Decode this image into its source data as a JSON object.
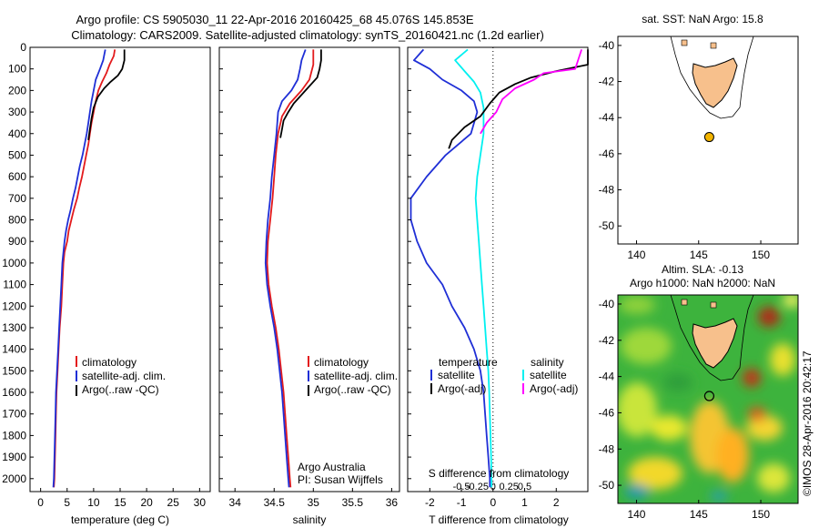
{
  "header": {
    "line1": "Argo profile: CS 5905030_11 22-Apr-2016 20160425_68 45.076S 145.853E",
    "line2": "Climatology: CARS2009. Satellite-adjusted climatology: synTS_20160421.nc (1.2d earlier)"
  },
  "colors": {
    "climatology": "#e31a1c",
    "satellite": "#1f2fd6",
    "argo": "#000000",
    "sal_satellite": "#00f0f0",
    "sal_argo": "#ff00ff",
    "land": "#f7c08c"
  },
  "depth_axis": {
    "ticks": [
      0,
      100,
      200,
      300,
      400,
      500,
      600,
      700,
      800,
      900,
      1000,
      1100,
      1200,
      1300,
      1400,
      1500,
      1600,
      1700,
      1800,
      1900,
      2000
    ],
    "ylim": [
      0,
      2060
    ]
  },
  "chart_data": [
    {
      "id": "temp",
      "type": "line",
      "xlabel": "temperature (deg C)",
      "xlim": [
        -2,
        32
      ],
      "xticks": [
        0,
        5,
        10,
        15,
        20,
        25,
        30
      ],
      "legend": [
        "climatology",
        "satellite-adj. clim.",
        "Argo(..raw -QC)"
      ],
      "series": [
        {
          "name": "climatology",
          "color": "#e31a1c",
          "points": [
            [
              14.0,
              10
            ],
            [
              13.8,
              40
            ],
            [
              13.0,
              80
            ],
            [
              12.4,
              120
            ],
            [
              11.6,
              160
            ],
            [
              10.9,
              200
            ],
            [
              10.4,
              250
            ],
            [
              10.0,
              300
            ],
            [
              9.6,
              350
            ],
            [
              9.3,
              400
            ],
            [
              9.0,
              450
            ],
            [
              8.6,
              500
            ],
            [
              8.2,
              550
            ],
            [
              7.8,
              600
            ],
            [
              7.3,
              650
            ],
            [
              6.9,
              700
            ],
            [
              6.3,
              750
            ],
            [
              5.8,
              800
            ],
            [
              5.3,
              850
            ],
            [
              5.0,
              900
            ],
            [
              4.5,
              950
            ],
            [
              4.3,
              1000
            ],
            [
              4.1,
              1100
            ],
            [
              3.9,
              1200
            ],
            [
              3.6,
              1300
            ],
            [
              3.4,
              1400
            ],
            [
              3.2,
              1500
            ],
            [
              3.0,
              1600
            ],
            [
              2.9,
              1700
            ],
            [
              2.8,
              1800
            ],
            [
              2.7,
              1900
            ],
            [
              2.6,
              2000
            ],
            [
              2.5,
              2040
            ]
          ]
        },
        {
          "name": "satellite-adj. clim.",
          "color": "#1f2fd6",
          "points": [
            [
              12.2,
              10
            ],
            [
              11.8,
              60
            ],
            [
              11.2,
              100
            ],
            [
              10.4,
              150
            ],
            [
              10.0,
              200
            ],
            [
              9.6,
              250
            ],
            [
              9.3,
              300
            ],
            [
              9.0,
              350
            ],
            [
              8.7,
              400
            ],
            [
              8.3,
              450
            ],
            [
              7.9,
              500
            ],
            [
              7.4,
              550
            ],
            [
              7.0,
              600
            ],
            [
              6.6,
              650
            ],
            [
              6.1,
              700
            ],
            [
              5.7,
              750
            ],
            [
              5.2,
              800
            ],
            [
              4.8,
              850
            ],
            [
              4.5,
              900
            ],
            [
              4.3,
              950
            ],
            [
              4.1,
              1000
            ],
            [
              3.9,
              1100
            ],
            [
              3.7,
              1200
            ],
            [
              3.5,
              1300
            ],
            [
              3.3,
              1400
            ],
            [
              3.1,
              1500
            ],
            [
              2.9,
              1600
            ],
            [
              2.8,
              1700
            ],
            [
              2.7,
              1800
            ],
            [
              2.6,
              1900
            ],
            [
              2.5,
              2000
            ],
            [
              2.4,
              2040
            ]
          ]
        },
        {
          "name": "Argo(..raw -QC)",
          "color": "#000000",
          "points": [
            [
              15.8,
              10
            ],
            [
              15.8,
              60
            ],
            [
              15.4,
              100
            ],
            [
              14.6,
              130
            ],
            [
              13.2,
              160
            ],
            [
              12.0,
              190
            ],
            [
              10.8,
              230
            ],
            [
              10.0,
              280
            ],
            [
              9.6,
              330
            ],
            [
              9.3,
              380
            ],
            [
              9.0,
              430
            ]
          ]
        }
      ]
    },
    {
      "id": "sal",
      "type": "line",
      "xlabel": "salinity",
      "xlim": [
        33.8,
        36.1
      ],
      "xticks": [
        34,
        34.5,
        35,
        35.5,
        36
      ],
      "legend": [
        "climatology",
        "satellite-adj. clim.",
        "Argo(..raw -QC)"
      ],
      "annotation": [
        "Argo Australia",
        "PI: Susan Wijffels"
      ],
      "series": [
        {
          "name": "climatology",
          "color": "#e31a1c",
          "points": [
            [
              35.0,
              10
            ],
            [
              35.0,
              80
            ],
            [
              34.95,
              150
            ],
            [
              34.85,
              200
            ],
            [
              34.7,
              260
            ],
            [
              34.6,
              320
            ],
            [
              34.55,
              400
            ],
            [
              34.52,
              500
            ],
            [
              34.5,
              600
            ],
            [
              34.48,
              700
            ],
            [
              34.45,
              800
            ],
            [
              34.42,
              900
            ],
            [
              34.41,
              1000
            ],
            [
              34.43,
              1100
            ],
            [
              34.47,
              1200
            ],
            [
              34.52,
              1300
            ],
            [
              34.56,
              1400
            ],
            [
              34.59,
              1500
            ],
            [
              34.62,
              1600
            ],
            [
              34.64,
              1700
            ],
            [
              34.66,
              1800
            ],
            [
              34.68,
              1900
            ],
            [
              34.7,
              2000
            ],
            [
              34.71,
              2040
            ]
          ]
        },
        {
          "name": "satellite-adj. clim.",
          "color": "#1f2fd6",
          "points": [
            [
              34.9,
              10
            ],
            [
              34.85,
              60
            ],
            [
              34.83,
              100
            ],
            [
              34.8,
              150
            ],
            [
              34.72,
              200
            ],
            [
              34.6,
              250
            ],
            [
              34.55,
              300
            ],
            [
              34.53,
              400
            ],
            [
              34.5,
              500
            ],
            [
              34.47,
              600
            ],
            [
              34.45,
              700
            ],
            [
              34.42,
              800
            ],
            [
              34.4,
              900
            ],
            [
              34.39,
              1000
            ],
            [
              34.41,
              1100
            ],
            [
              34.45,
              1200
            ],
            [
              34.5,
              1300
            ],
            [
              34.54,
              1400
            ],
            [
              34.57,
              1500
            ],
            [
              34.6,
              1600
            ],
            [
              34.62,
              1700
            ],
            [
              34.64,
              1800
            ],
            [
              34.66,
              1900
            ],
            [
              34.68,
              2000
            ],
            [
              34.69,
              2040
            ]
          ]
        },
        {
          "name": "Argo(..raw -QC)",
          "color": "#000000",
          "points": [
            [
              35.1,
              10
            ],
            [
              35.1,
              60
            ],
            [
              35.08,
              100
            ],
            [
              35.05,
              140
            ],
            [
              34.95,
              180
            ],
            [
              34.85,
              220
            ],
            [
              34.75,
              260
            ],
            [
              34.68,
              300
            ],
            [
              34.62,
              340
            ],
            [
              34.6,
              380
            ],
            [
              34.58,
              420
            ]
          ]
        }
      ]
    },
    {
      "id": "diff",
      "type": "line",
      "xlabel": "T difference from climatology",
      "xlabel_top": "S difference from climatology",
      "xlim": [
        -2.7,
        3.0
      ],
      "xticks": [
        -2,
        -1,
        0,
        1,
        2
      ],
      "xticks_top": [
        -0.5,
        -0.25,
        0,
        0.25,
        0.5
      ],
      "legend_left_title": "temperature",
      "legend_right_title": "salinity",
      "legend": [
        "satellite",
        "Argo(-adj)",
        "satellite",
        "Argo(-adj)"
      ],
      "series": [
        {
          "name": "temperature satellite",
          "color": "#1f2fd6",
          "points": [
            [
              -2.2,
              10
            ],
            [
              -2.5,
              60
            ],
            [
              -2.0,
              100
            ],
            [
              -1.6,
              150
            ],
            [
              -1.0,
              200
            ],
            [
              -0.6,
              250
            ],
            [
              -0.5,
              300
            ],
            [
              -0.7,
              400
            ],
            [
              -1.5,
              500
            ],
            [
              -2.1,
              600
            ],
            [
              -2.6,
              700
            ],
            [
              -2.6,
              800
            ],
            [
              -2.4,
              900
            ],
            [
              -2.1,
              1000
            ],
            [
              -1.6,
              1100
            ],
            [
              -1.3,
              1200
            ],
            [
              -0.9,
              1300
            ],
            [
              -0.6,
              1400
            ],
            [
              -0.4,
              1500
            ],
            [
              -0.3,
              1600
            ],
            [
              -0.25,
              1700
            ],
            [
              -0.2,
              1800
            ],
            [
              -0.15,
              1900
            ],
            [
              -0.1,
              2000
            ],
            [
              -0.1,
              2040
            ]
          ]
        },
        {
          "name": "salinity satellite",
          "color": "#00f0f0",
          "points": [
            [
              -0.8,
              10
            ],
            [
              -1.2,
              60
            ],
            [
              -0.9,
              110
            ],
            [
              -0.6,
              160
            ],
            [
              -0.4,
              210
            ],
            [
              -0.3,
              280
            ],
            [
              -0.3,
              400
            ],
            [
              -0.4,
              500
            ],
            [
              -0.5,
              600
            ],
            [
              -0.55,
              700
            ],
            [
              -0.5,
              800
            ],
            [
              -0.45,
              900
            ],
            [
              -0.4,
              1000
            ],
            [
              -0.35,
              1100
            ],
            [
              -0.3,
              1200
            ],
            [
              -0.25,
              1300
            ],
            [
              -0.2,
              1400
            ],
            [
              -0.15,
              1500
            ],
            [
              -0.12,
              1600
            ],
            [
              -0.1,
              1700
            ],
            [
              -0.08,
              1800
            ],
            [
              -0.06,
              1900
            ],
            [
              -0.05,
              2000
            ],
            [
              -0.05,
              2040
            ]
          ]
        },
        {
          "name": "temperature Argo(-adj)",
          "color": "#000000",
          "points": [
            [
              3.0,
              10
            ],
            [
              3.0,
              80
            ],
            [
              2.0,
              110
            ],
            [
              1.2,
              140
            ],
            [
              0.7,
              170
            ],
            [
              0.2,
              210
            ],
            [
              -0.1,
              260
            ],
            [
              -0.4,
              320
            ],
            [
              -0.9,
              370
            ],
            [
              -1.3,
              430
            ],
            [
              -1.4,
              470
            ]
          ]
        },
        {
          "name": "salinity Argo(-adj)",
          "color": "#ff00ff",
          "points": [
            [
              2.8,
              10
            ],
            [
              2.6,
              100
            ],
            [
              1.6,
              120
            ],
            [
              1.3,
              150
            ],
            [
              0.7,
              190
            ],
            [
              0.3,
              240
            ],
            [
              0.1,
              300
            ],
            [
              -0.2,
              350
            ],
            [
              -0.4,
              400
            ]
          ]
        }
      ]
    }
  ],
  "map_sst": {
    "title": "sat. SST: NaN Argo: 15.8",
    "lon_ticks": [
      140,
      145,
      150
    ],
    "lat_ticks": [
      -40,
      -42,
      -44,
      -46,
      -48,
      -50
    ],
    "lon_range": [
      138.5,
      153.0
    ],
    "lat_range": [
      -51.0,
      -39.5
    ],
    "float_position": {
      "lon": 145.853,
      "lat": -45.076
    }
  },
  "map_sla": {
    "title1": "Altim. SLA: -0.13",
    "title2": "Argo h1000: NaN h2000: NaN",
    "lon_ticks": [
      140,
      145,
      150
    ],
    "lat_ticks": [
      -40,
      -42,
      -44,
      -46,
      -48,
      -50
    ],
    "lon_range": [
      138.5,
      153.0
    ],
    "lat_range": [
      -51.0,
      -39.5
    ],
    "float_position": {
      "lon": 145.853,
      "lat": -45.076
    }
  },
  "footer": {
    "stamp": "©IMOS 28-Apr-2016 20:42:17"
  }
}
